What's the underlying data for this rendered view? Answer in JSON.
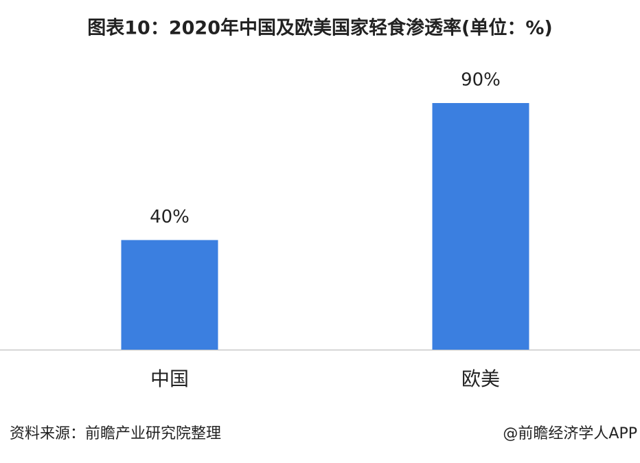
{
  "chart_data": {
    "type": "bar",
    "title": "图表10：2020年中国及欧美国家轻食渗透率(单位：%)",
    "categories": [
      "中国",
      "欧美"
    ],
    "values": [
      40,
      90
    ],
    "value_labels": [
      "40%",
      "90%"
    ],
    "color": "#3b7fe0",
    "source": "资料来源：前瞻产业研究院整理",
    "credit": "@前瞻经济学人APP"
  }
}
